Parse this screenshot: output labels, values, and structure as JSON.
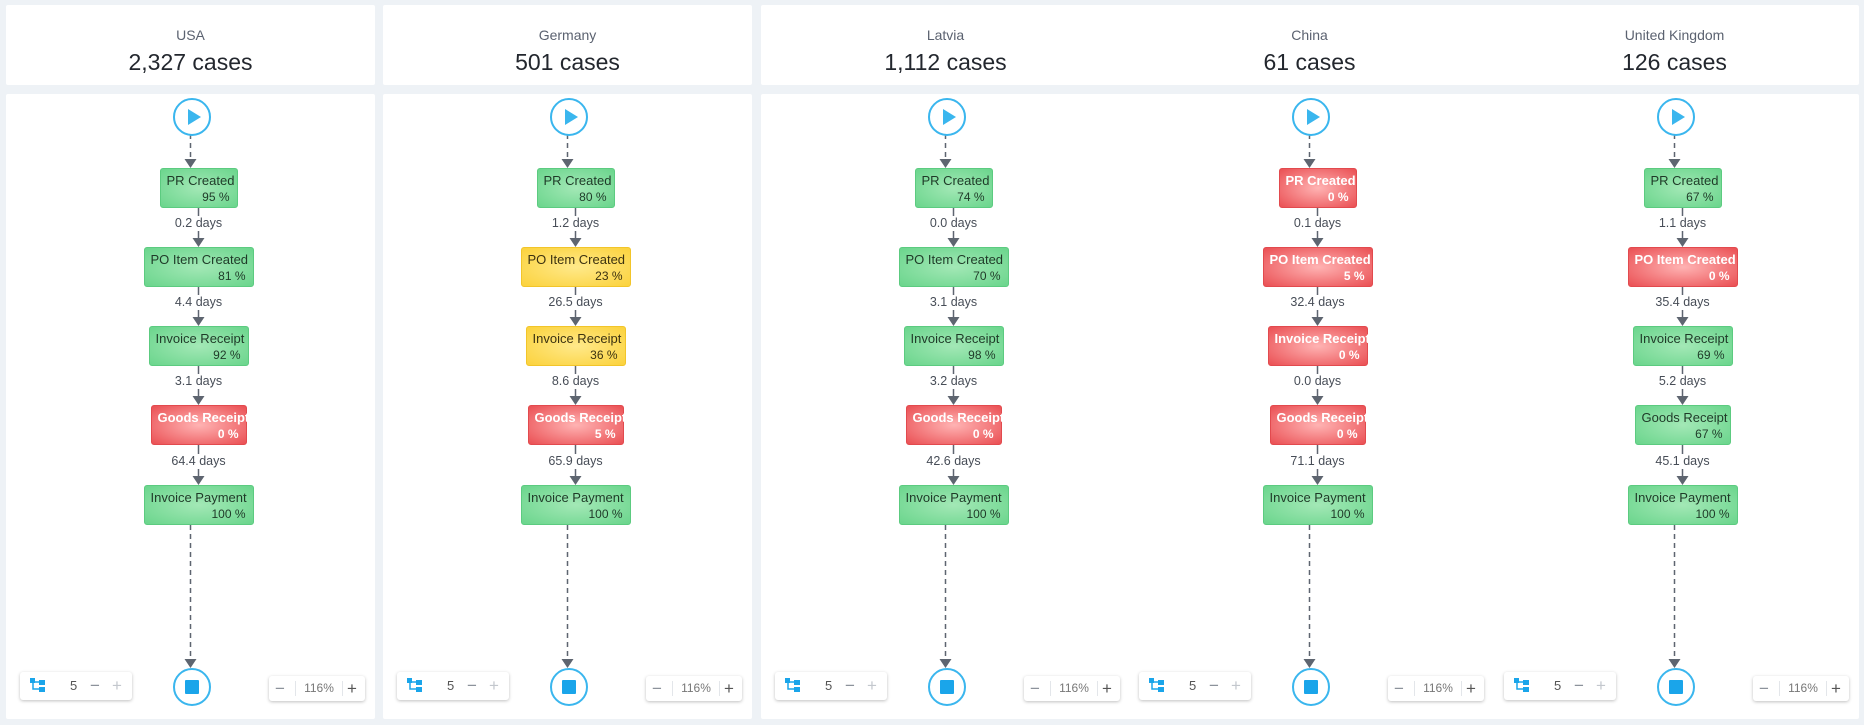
{
  "colors": {
    "accent": "#3ab6ee",
    "green": "#6ad58c",
    "yellow": "#fbd23c",
    "red": "#ea4f53",
    "arrow": "#5e6570"
  },
  "columns": [
    {
      "country": "USA",
      "cases": "2,327 cases",
      "nodes": [
        {
          "name": "PR Created",
          "pct": "95 %",
          "status": "green"
        },
        {
          "name": "PO Item Created",
          "pct": "81 %",
          "status": "green"
        },
        {
          "name": "Invoice Receipt",
          "pct": "92 %",
          "status": "green"
        },
        {
          "name": "Goods Receipt",
          "pct": "0 %",
          "status": "red"
        },
        {
          "name": "Invoice Payment",
          "pct": "100 %",
          "status": "green"
        }
      ],
      "durations": [
        "0.2 days",
        "4.4 days",
        "3.1 days",
        "64.4 days"
      ],
      "level": "5",
      "zoom": "116%"
    },
    {
      "country": "Germany",
      "cases": "501 cases",
      "nodes": [
        {
          "name": "PR Created",
          "pct": "80 %",
          "status": "green"
        },
        {
          "name": "PO Item Created",
          "pct": "23 %",
          "status": "yellow"
        },
        {
          "name": "Invoice Receipt",
          "pct": "36 %",
          "status": "yellow"
        },
        {
          "name": "Goods Receipt",
          "pct": "5 %",
          "status": "red"
        },
        {
          "name": "Invoice Payment",
          "pct": "100 %",
          "status": "green"
        }
      ],
      "durations": [
        "1.2 days",
        "26.5 days",
        "8.6 days",
        "65.9 days"
      ],
      "level": "5",
      "zoom": "116%"
    },
    {
      "country": "Latvia",
      "cases": "1,112 cases",
      "nodes": [
        {
          "name": "PR Created",
          "pct": "74 %",
          "status": "green"
        },
        {
          "name": "PO Item Created",
          "pct": "70 %",
          "status": "green"
        },
        {
          "name": "Invoice Receipt",
          "pct": "98 %",
          "status": "green"
        },
        {
          "name": "Goods Receipt",
          "pct": "0 %",
          "status": "red"
        },
        {
          "name": "Invoice Payment",
          "pct": "100 %",
          "status": "green"
        }
      ],
      "durations": [
        "0.0 days",
        "3.1 days",
        "3.2 days",
        "42.6 days"
      ],
      "level": "5",
      "zoom": "116%"
    },
    {
      "country": "China",
      "cases": "61 cases",
      "nodes": [
        {
          "name": "PR Created",
          "pct": "0 %",
          "status": "red"
        },
        {
          "name": "PO Item Created",
          "pct": "5 %",
          "status": "red"
        },
        {
          "name": "Invoice Receipt",
          "pct": "0 %",
          "status": "red"
        },
        {
          "name": "Goods Receipt",
          "pct": "0 %",
          "status": "red"
        },
        {
          "name": "Invoice Payment",
          "pct": "100 %",
          "status": "green"
        }
      ],
      "durations": [
        "0.1 days",
        "32.4 days",
        "0.0 days",
        "71.1 days"
      ],
      "level": "5",
      "zoom": "116%"
    },
    {
      "country": "United Kingdom",
      "cases": "126 cases",
      "nodes": [
        {
          "name": "PR Created",
          "pct": "67 %",
          "status": "green"
        },
        {
          "name": "PO Item Created",
          "pct": "0 %",
          "status": "red"
        },
        {
          "name": "Invoice Receipt",
          "pct": "69 %",
          "status": "green"
        },
        {
          "name": "Goods Receipt",
          "pct": "67 %",
          "status": "green"
        },
        {
          "name": "Invoice Payment",
          "pct": "100 %",
          "status": "green"
        }
      ],
      "durations": [
        "1.1 days",
        "35.4 days",
        "5.2 days",
        "45.1 days"
      ],
      "level": "5",
      "zoom": "116%"
    }
  ],
  "icons": {
    "start": "play-icon",
    "end": "stop-icon",
    "tree": "tree-structure-icon",
    "minus": "minus-icon",
    "plus": "plus-icon"
  },
  "glyphs": {
    "minus": "−",
    "plus": "+"
  }
}
